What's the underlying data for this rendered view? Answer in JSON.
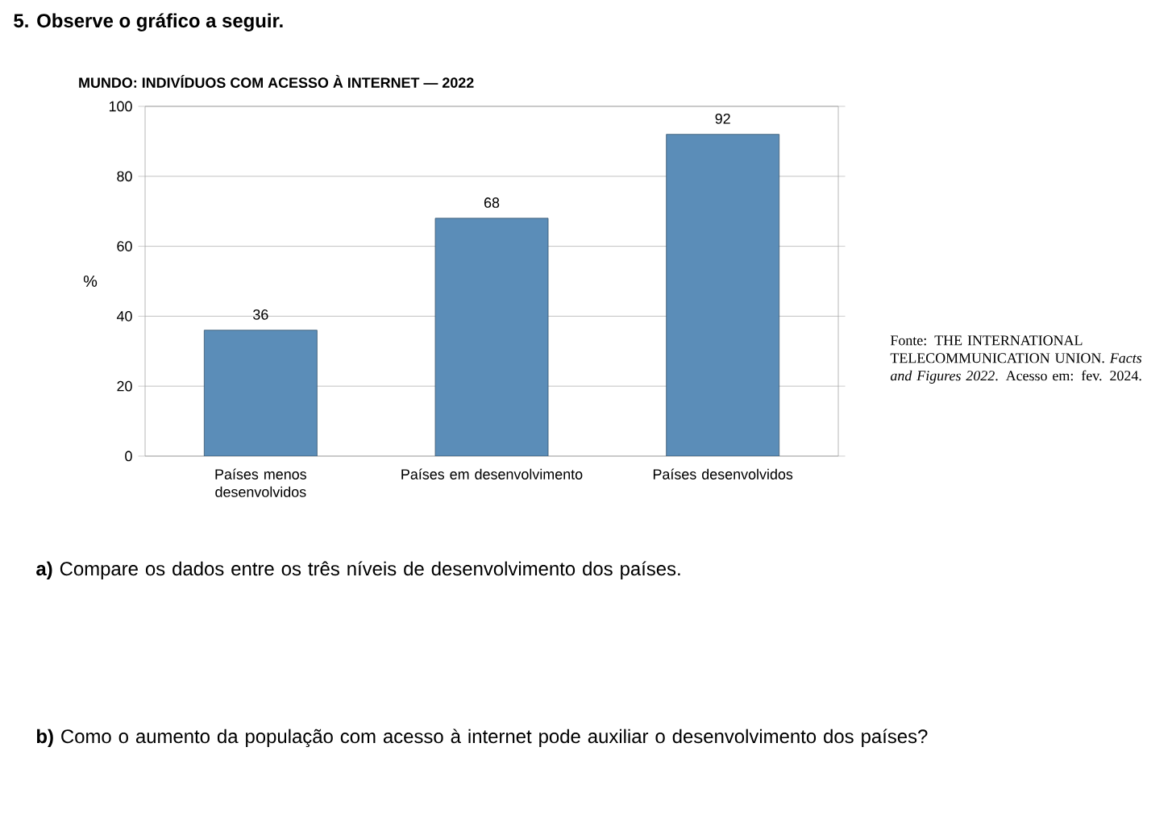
{
  "chart_data": {
    "type": "bar",
    "title": "MUNDO: INDIVÍDUOS COM ACESSO À INTERNET — 2022",
    "ylabel": "%",
    "categories": [
      "Países menos desenvolvidos",
      "Países em desenvolvimento",
      "Países desenvolvidos"
    ],
    "values": [
      36,
      68,
      92
    ],
    "color": "#5b8db8",
    "data_labels": true,
    "grid": "y",
    "ylim": [
      0,
      100
    ],
    "yticks": [
      0,
      20,
      40,
      60,
      80,
      100
    ],
    "annotations": [
      "**5.** **Observe o gráfico a seguir.**",
      "Fonte: THE INTERNATIONAL TELECOMMUNICATION UNION. *Facts and Figures 2022*. Acesso em: fev. 2024.",
      "**a)** Compare os dados entre os três níveis de desenvolvimento dos países.",
      "**b)** Como o aumento da população com acesso à internet pode auxiliar o desenvolvimento dos países?"
    ]
  }
}
